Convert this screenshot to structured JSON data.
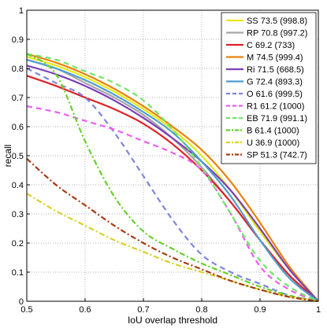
{
  "chart_data": {
    "type": "line",
    "xlabel": "IoU overlap threshold",
    "ylabel": "recall",
    "xlim": [
      0.5,
      1.0
    ],
    "ylim": [
      0,
      1.0
    ],
    "x_ticks": [
      "0.5",
      "0.6",
      "0.7",
      "0.8",
      "0.9",
      "1"
    ],
    "y_ticks": [
      "0",
      "0.1",
      "0.2",
      "0.3",
      "0.4",
      "0.5",
      "0.6",
      "0.7",
      "0.8",
      "0.9",
      "1"
    ],
    "grid": true,
    "legend_position": "top-right",
    "x": [
      0.5,
      0.55,
      0.6,
      0.65,
      0.7,
      0.75,
      0.8,
      0.85,
      0.9,
      0.95,
      1.0
    ],
    "series": [
      {
        "name": "SS 73.5 (998.8)",
        "color": "#e5e817",
        "dash": "solid",
        "values": [
          0.84,
          0.81,
          0.77,
          0.72,
          0.66,
          0.59,
          0.5,
          0.38,
          0.24,
          0.11,
          0.0
        ]
      },
      {
        "name": "RP 70.8 (997.2)",
        "color": "#a6a6a6",
        "dash": "solid",
        "values": [
          0.83,
          0.8,
          0.75,
          0.7,
          0.64,
          0.56,
          0.46,
          0.34,
          0.21,
          0.09,
          0.0
        ]
      },
      {
        "name": "C 69.2 (733)",
        "color": "#dd2228",
        "dash": "solid",
        "values": [
          0.775,
          0.74,
          0.7,
          0.66,
          0.61,
          0.54,
          0.45,
          0.34,
          0.21,
          0.09,
          0.0
        ]
      },
      {
        "name": "M 74.5 (999.4)",
        "color": "#e8820c",
        "dash": "solid",
        "values": [
          0.85,
          0.82,
          0.78,
          0.73,
          0.67,
          0.6,
          0.52,
          0.41,
          0.27,
          0.12,
          0.0
        ]
      },
      {
        "name": "Ri 71.5 (668.5)",
        "color": "#7c3fb6",
        "dash": "solid",
        "values": [
          0.81,
          0.78,
          0.74,
          0.69,
          0.63,
          0.56,
          0.48,
          0.38,
          0.25,
          0.11,
          0.0
        ]
      },
      {
        "name": "G 72.4 (893.3)",
        "color": "#4f9dd0",
        "dash": "solid",
        "values": [
          0.83,
          0.8,
          0.76,
          0.71,
          0.65,
          0.58,
          0.48,
          0.36,
          0.21,
          0.08,
          0.0
        ]
      },
      {
        "name": "O 61.6 (999.5)",
        "color": "#7e86dd",
        "dash": "dash",
        "values": [
          0.8,
          0.75,
          0.7,
          0.58,
          0.43,
          0.28,
          0.16,
          0.1,
          0.06,
          0.02,
          0.0
        ]
      },
      {
        "name": "R1 61.2 (1000)",
        "color": "#ee5df0",
        "dash": "dash",
        "values": [
          0.67,
          0.65,
          0.62,
          0.59,
          0.55,
          0.51,
          0.45,
          0.3,
          0.12,
          0.04,
          0.0
        ]
      },
      {
        "name": "EB 71.9 (991.1)",
        "color": "#6fe667",
        "dash": "dash",
        "values": [
          0.85,
          0.83,
          0.79,
          0.75,
          0.69,
          0.59,
          0.46,
          0.3,
          0.14,
          0.05,
          0.0
        ]
      },
      {
        "name": "B 61.4 (1000)",
        "color": "#65d129",
        "dash": "dash-dot",
        "values": [
          0.85,
          0.78,
          0.55,
          0.36,
          0.24,
          0.18,
          0.13,
          0.09,
          0.05,
          0.02,
          0.0
        ]
      },
      {
        "name": "U 36.9 (1000)",
        "color": "#d9d02b",
        "dash": "dash-dot",
        "values": [
          0.37,
          0.31,
          0.26,
          0.21,
          0.17,
          0.13,
          0.1,
          0.07,
          0.04,
          0.015,
          0.0
        ]
      },
      {
        "name": "SP 51.3 (742.7)",
        "color": "#a73b12",
        "dash": "dash-dot",
        "values": [
          0.49,
          0.4,
          0.33,
          0.26,
          0.2,
          0.15,
          0.11,
          0.07,
          0.04,
          0.015,
          0.0
        ]
      }
    ]
  }
}
